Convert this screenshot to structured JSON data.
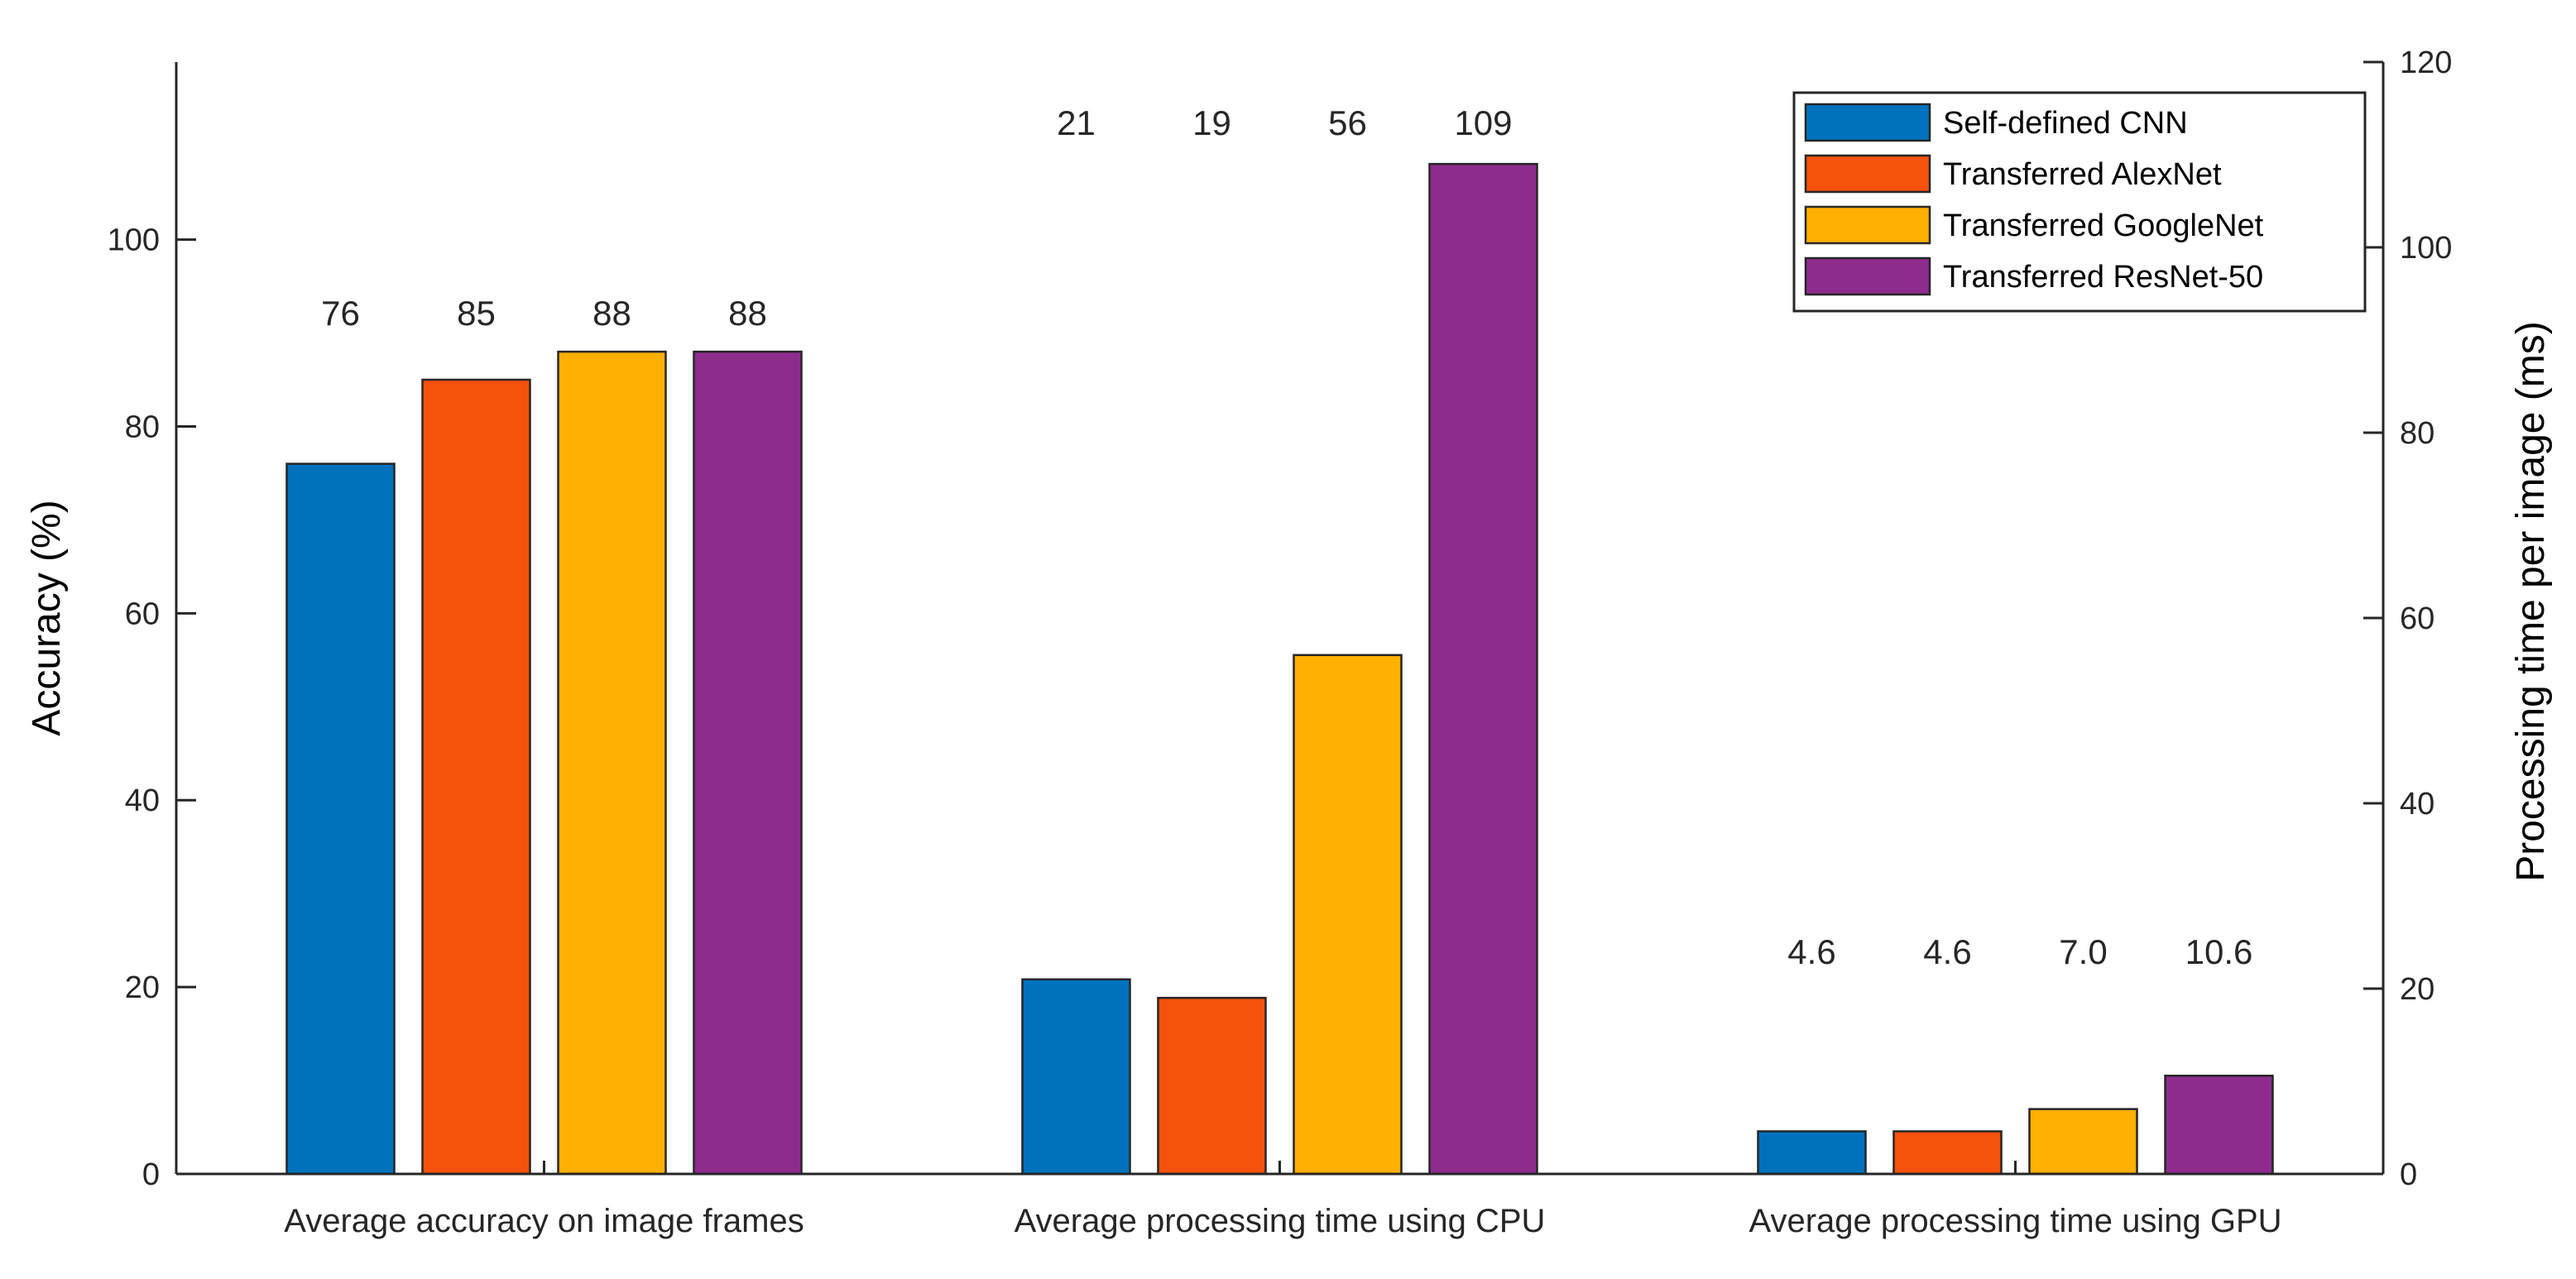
{
  "chart_data": {
    "type": "bar",
    "categories": [
      "Average accuracy on image frames",
      "Average processing time using CPU",
      "Average processing time using GPU"
    ],
    "category_axis": [
      "left",
      "right",
      "right"
    ],
    "series": [
      {
        "name": "Self-defined CNN",
        "color": "#0072BD",
        "values": [
          76,
          21,
          4.6
        ],
        "labels": [
          "76",
          "21",
          "4.6"
        ]
      },
      {
        "name": "Transferred AlexNet",
        "color": "#F4510B",
        "values": [
          85,
          19,
          4.6
        ],
        "labels": [
          "85",
          "19",
          "4.6"
        ]
      },
      {
        "name": "Transferred GoogleNet",
        "color": "#FFB000",
        "values": [
          88,
          56,
          7.0
        ],
        "labels": [
          "88",
          "56",
          "7.0"
        ]
      },
      {
        "name": "Transferred ResNet-50",
        "color": "#8E2C8E",
        "values": [
          88,
          109,
          10.6
        ],
        "labels": [
          "88",
          "109",
          "10.6"
        ]
      }
    ],
    "y_left": {
      "label": "Accuracy (%)",
      "lim": [
        0,
        119
      ],
      "ticks": [
        0,
        20,
        40,
        60,
        80,
        100
      ]
    },
    "y_right": {
      "label": "Processing time per image (ms)",
      "lim": [
        0,
        120
      ],
      "ticks": [
        0,
        20,
        40,
        60,
        80,
        100,
        120
      ]
    },
    "legend_position": "top-right",
    "grid": false
  }
}
